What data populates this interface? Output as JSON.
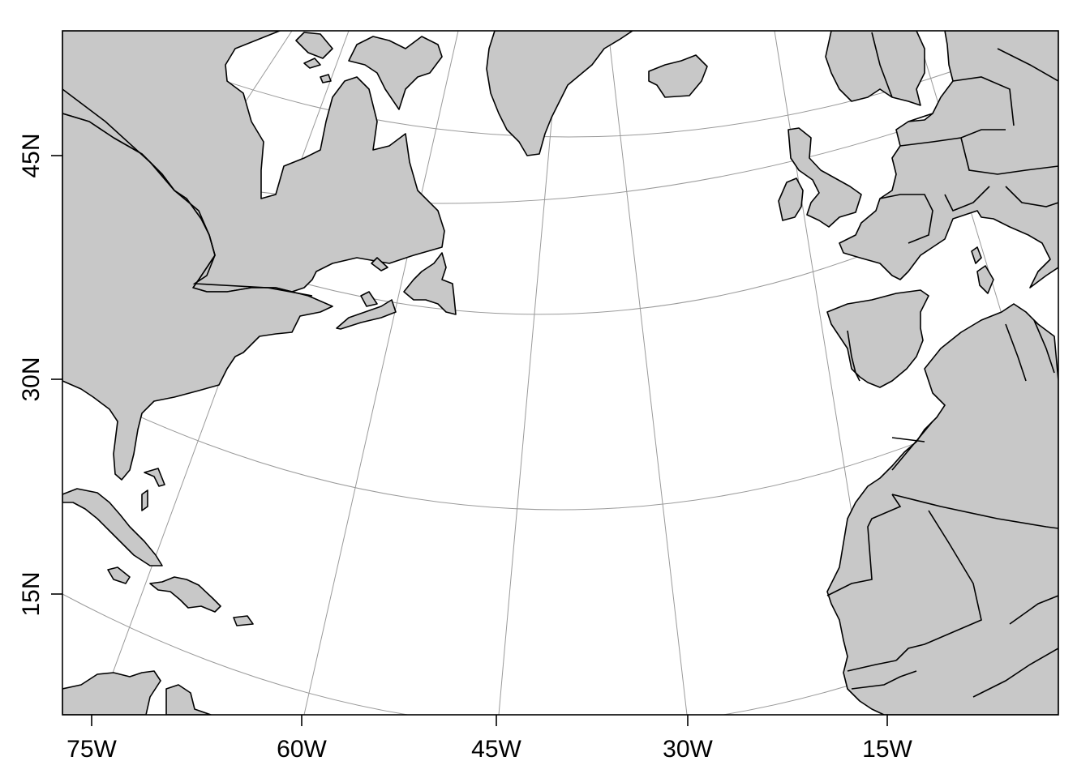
{
  "map": {
    "projection": "conic",
    "colors": {
      "land": "#c8c8c8",
      "border": "#000000",
      "graticule": "#9a9a9a",
      "background": "#ffffff"
    },
    "x_axis_labels": [
      "75W",
      "60W",
      "45W",
      "30W",
      "15W"
    ],
    "y_axis_labels": [
      "45N",
      "30N",
      "15N"
    ]
  }
}
